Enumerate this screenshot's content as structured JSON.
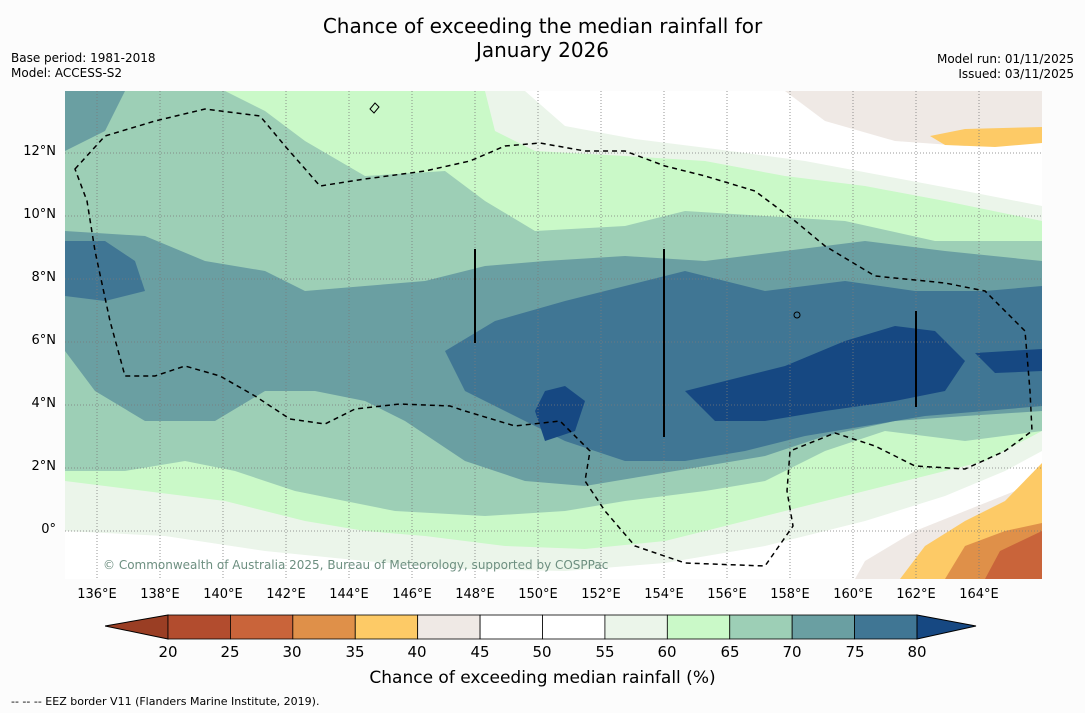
{
  "title_line1": "Chance of exceeding the median rainfall for",
  "title_line2": "January 2026",
  "base_period": "Base period: 1981-2018",
  "model": "Model: ACCESS-S2",
  "model_run": "Model run: 01/11/2025",
  "issued": "Issued: 03/11/2025",
  "y_labels": [
    "12°N",
    "10°N",
    "8°N",
    "6°N",
    "4°N",
    "2°N",
    "0°"
  ],
  "x_labels": [
    "136°E",
    "138°E",
    "140°E",
    "142°E",
    "144°E",
    "146°E",
    "148°E",
    "150°E",
    "152°E",
    "154°E",
    "156°E",
    "158°E",
    "160°E",
    "162°E",
    "164°E"
  ],
  "copyright": "© Commonwealth of Australia 2025, Bureau of Meteorology, supported by COSPPac",
  "colorbar": {
    "ticks": [
      "20",
      "25",
      "30",
      "35",
      "40",
      "45",
      "50",
      "55",
      "60",
      "65",
      "70",
      "75",
      "80"
    ],
    "colors": [
      "#9a3e24",
      "#b24c2e",
      "#c9643a",
      "#df9049",
      "#fdca66",
      "#efe9e5",
      "#ffffff",
      "#ffffff",
      "#ebf5ea",
      "#caf9c8",
      "#9dcfb6",
      "#6a9fa2",
      "#407694",
      "#164882"
    ],
    "label": "Chance of exceeding median rainfall (%)"
  },
  "footer": "--  --  -- EEZ border V11 (Flanders Marine Institute, 2019)."
}
